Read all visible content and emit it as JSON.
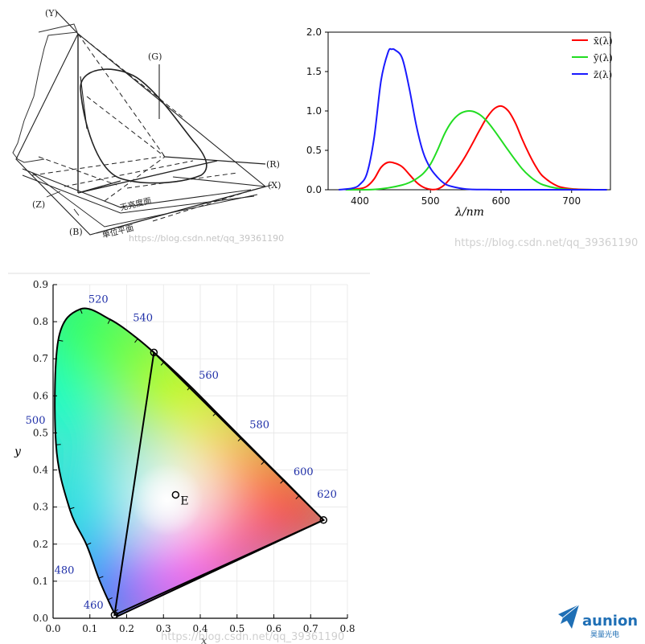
{
  "diagram_3d": {
    "labels": {
      "y": "(Y)",
      "g": "(G)",
      "r": "(R)",
      "x": "(X)",
      "z": "(Z)",
      "b": "(B)"
    },
    "plane_no_luminance": "无亮度面",
    "plane_unit": "单位平面",
    "watermark": "https://blog.csdn.net/qq_39361190"
  },
  "chart_data": [
    {
      "type": "line",
      "title": "",
      "xlabel": "λ/nm",
      "ylabel": "",
      "xlim": [
        355,
        755
      ],
      "ylim": [
        0,
        2.0
      ],
      "xticks": [
        400,
        500,
        600,
        700
      ],
      "yticks": [
        0.0,
        0.5,
        1.0,
        1.5,
        2.0
      ],
      "legend_position": "top-right",
      "series": [
        {
          "name": "x̄(λ)",
          "color": "#ff0000",
          "x": [
            380,
            400,
            410,
            420,
            430,
            440,
            450,
            460,
            470,
            480,
            490,
            500,
            510,
            520,
            530,
            540,
            550,
            560,
            570,
            580,
            590,
            600,
            610,
            620,
            630,
            640,
            650,
            660,
            680,
            700,
            720,
            750
          ],
          "values": [
            0.0,
            0.014,
            0.044,
            0.134,
            0.284,
            0.348,
            0.336,
            0.291,
            0.195,
            0.096,
            0.032,
            0.005,
            0.009,
            0.063,
            0.166,
            0.29,
            0.433,
            0.595,
            0.762,
            0.916,
            1.026,
            1.062,
            1.003,
            0.854,
            0.642,
            0.448,
            0.284,
            0.165,
            0.047,
            0.011,
            0.003,
            0.0
          ]
        },
        {
          "name": "ȳ(λ)",
          "color": "#22dd22",
          "x": [
            380,
            400,
            420,
            440,
            460,
            470,
            480,
            490,
            500,
            510,
            520,
            530,
            540,
            550,
            560,
            570,
            580,
            590,
            600,
            610,
            620,
            630,
            640,
            650,
            660,
            680,
            700,
            730,
            750
          ],
          "values": [
            0.0,
            0.0,
            0.004,
            0.023,
            0.06,
            0.091,
            0.139,
            0.208,
            0.323,
            0.503,
            0.71,
            0.862,
            0.954,
            0.995,
            0.995,
            0.952,
            0.87,
            0.757,
            0.631,
            0.503,
            0.381,
            0.265,
            0.175,
            0.107,
            0.061,
            0.017,
            0.004,
            0.0,
            0.0
          ]
        },
        {
          "name": "z̄(λ)",
          "color": "#1a1aff",
          "x": [
            370,
            390,
            400,
            410,
            420,
            430,
            440,
            445,
            450,
            460,
            470,
            480,
            490,
            500,
            510,
            520,
            530,
            550,
            580,
            620,
            750
          ],
          "values": [
            0.0,
            0.02,
            0.068,
            0.207,
            0.646,
            1.386,
            1.747,
            1.783,
            1.772,
            1.669,
            1.288,
            0.813,
            0.465,
            0.272,
            0.158,
            0.078,
            0.042,
            0.009,
            0.002,
            0.0,
            0.0
          ]
        }
      ]
    },
    {
      "type": "scatter",
      "title": "",
      "xlabel": "x",
      "ylabel": "y",
      "xlim": [
        0.0,
        0.8
      ],
      "ylim": [
        0.0,
        0.9
      ],
      "xticks": [
        0.0,
        0.1,
        0.2,
        0.3,
        0.4,
        0.5,
        0.6,
        0.7,
        0.8
      ],
      "yticks": [
        0.0,
        0.1,
        0.2,
        0.3,
        0.4,
        0.5,
        0.6,
        0.7,
        0.8,
        0.9
      ],
      "grid": true,
      "locus": {
        "x": [
          0.174,
          0.165,
          0.149,
          0.124,
          0.091,
          0.045,
          0.008,
          0.014,
          0.074,
          0.155,
          0.23,
          0.302,
          0.374,
          0.444,
          0.512,
          0.575,
          0.627,
          0.669,
          0.735
        ],
        "y": [
          0.005,
          0.017,
          0.05,
          0.108,
          0.198,
          0.295,
          0.468,
          0.75,
          0.834,
          0.806,
          0.754,
          0.692,
          0.625,
          0.555,
          0.487,
          0.424,
          0.373,
          0.331,
          0.265
        ]
      },
      "wavelength_labels": [
        {
          "text": "460",
          "x": 0.144,
          "y": 0.03
        },
        {
          "text": "480",
          "x": 0.091,
          "y": 0.133
        },
        {
          "text": "500",
          "x": 0.008,
          "y": 0.538
        },
        {
          "text": "520",
          "x": 0.074,
          "y": 0.834
        },
        {
          "text": "540",
          "x": 0.23,
          "y": 0.754
        },
        {
          "text": "560",
          "x": 0.374,
          "y": 0.625
        },
        {
          "text": "580",
          "x": 0.512,
          "y": 0.487
        },
        {
          "text": "600",
          "x": 0.627,
          "y": 0.373
        },
        {
          "text": "620",
          "x": 0.691,
          "y": 0.308
        }
      ],
      "primaries": [
        {
          "x": 0.735,
          "y": 0.265
        },
        {
          "x": 0.274,
          "y": 0.717
        },
        {
          "x": 0.167,
          "y": 0.009
        }
      ],
      "white_point": {
        "label": "E",
        "x": 0.333,
        "y": 0.333
      },
      "watermark": "https://blog.csdn.net/qq_39361190"
    }
  ],
  "brand": {
    "name": "aunion",
    "subtitle": "昊量光电",
    "color": "#1f6fb5"
  }
}
